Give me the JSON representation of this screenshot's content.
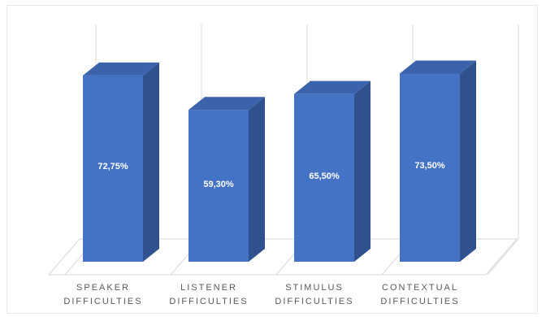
{
  "chart_data": {
    "type": "bar",
    "style": "3d-column",
    "categories": [
      [
        "SPEAKER",
        "DIFFICULTIES"
      ],
      [
        "LISTENER",
        "DIFFICULTIES"
      ],
      [
        "STIMULUS",
        "DIFFICULTIES"
      ],
      [
        "CONTEXTUAL",
        "DIFFICULTIES"
      ]
    ],
    "values": [
      72.75,
      59.3,
      65.5,
      73.5
    ],
    "value_labels": [
      "72,75%",
      "59,30%",
      "65,50%",
      "73,50%"
    ],
    "ylim": [
      0,
      100
    ],
    "title": "",
    "xlabel": "",
    "ylabel": "",
    "grid": true,
    "legend": "none",
    "colors": {
      "front": "#4472c4",
      "side": "#2f528f",
      "top": "#3b63ac",
      "grid": "#d9d9d9",
      "label": "#595959"
    }
  }
}
